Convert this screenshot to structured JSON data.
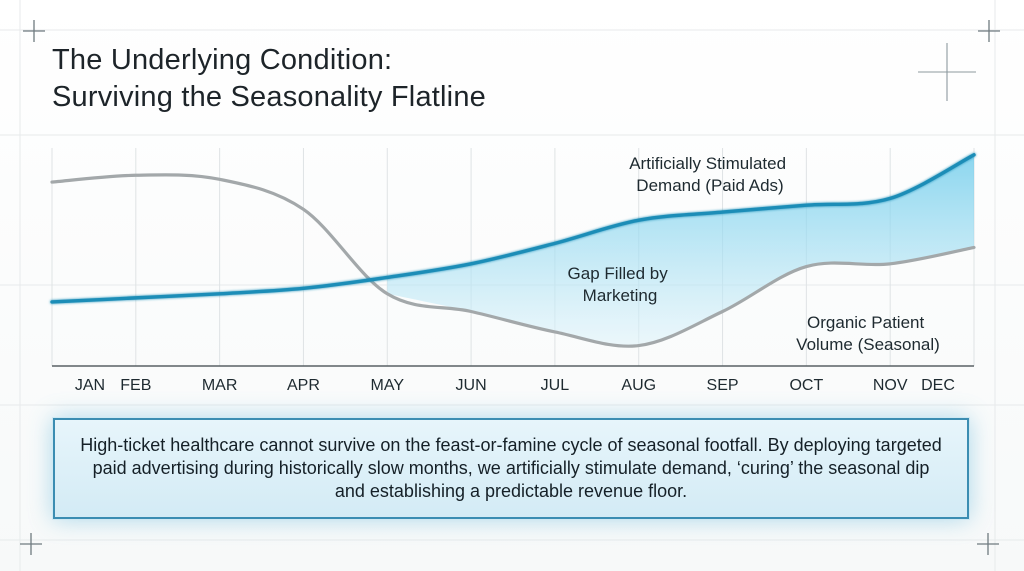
{
  "title": {
    "line1": "The Underlying Condition:",
    "line2": "Surviving the Seasonality Flatline"
  },
  "chart_data": {
    "type": "line",
    "categories": [
      "JAN",
      "FEB",
      "MAR",
      "APR",
      "MAY",
      "JUN",
      "JUL",
      "AUG",
      "SEP",
      "OCT",
      "NOV",
      "DEC"
    ],
    "series": [
      {
        "name": "Artificially Stimulated Demand (Paid Ads)",
        "color": "#1b8db7",
        "values": [
          12,
          15,
          18,
          22,
          30,
          40,
          55,
          72,
          78,
          83,
          88,
          120
        ]
      },
      {
        "name": "Organic Patient Volume (Seasonal)",
        "color": "#a3a8aa",
        "values": [
          100,
          105,
          102,
          80,
          18,
          5,
          -10,
          -20,
          5,
          38,
          40,
          52
        ]
      }
    ],
    "annotations": {
      "gap_label": "Gap Filled by Marketing",
      "paid_label_line1": "Artificially Stimulated",
      "paid_label_line2": "Demand (Paid Ads)",
      "organic_label_line1": "Organic Patient",
      "organic_label_line2": "Volume (Seasonal)"
    },
    "fill_color": "#66c9ea",
    "grid": true,
    "legend_placement": "inline"
  },
  "callout": {
    "text": "High-ticket healthcare cannot survive on the feast-or-famine cycle of seasonal footfall. By deploying targeted paid advertising during historically slow months, we artificially stimulate demand, ‘curing’ the seasonal dip and establishing a predictable revenue floor."
  }
}
